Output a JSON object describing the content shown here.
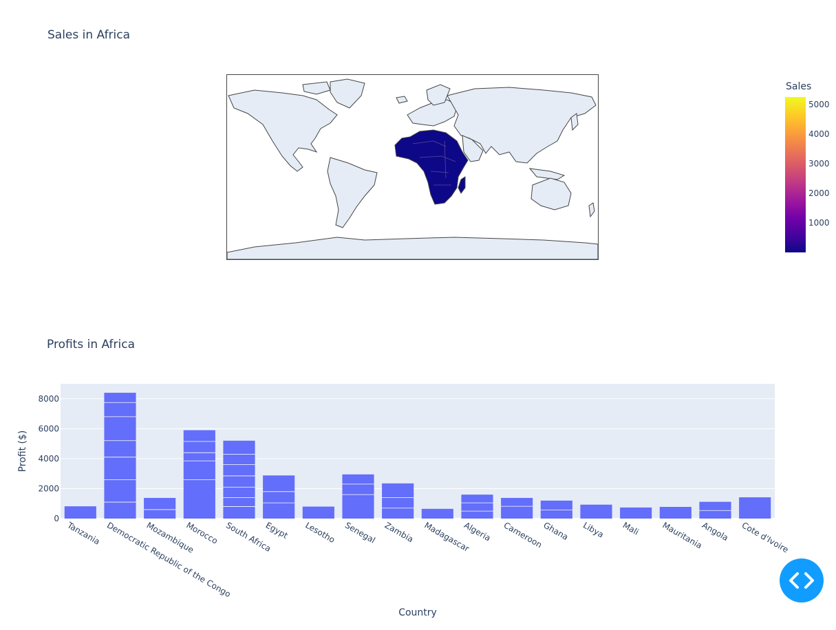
{
  "map": {
    "title": "Sales in Africa",
    "colorbar": {
      "title": "Sales",
      "ticks": [
        "5000",
        "4000",
        "3000",
        "2000",
        "1000"
      ],
      "colorscale": [
        "#0d0887",
        "#46039f",
        "#7201a8",
        "#9c179e",
        "#bd3786",
        "#d8576b",
        "#ed7953",
        "#fb9f3a",
        "#fdca26",
        "#f0f921"
      ]
    },
    "colors": {
      "land": "#e5ecf6",
      "coast": "#444444",
      "africa": "#0d0887"
    }
  },
  "chart_data": {
    "type": "bar",
    "title": "Profits in Africa",
    "xlabel": "Country",
    "ylabel": "Profit ($)",
    "ylim": [
      0,
      9000
    ],
    "yticks": [
      0,
      2000,
      4000,
      6000,
      8000
    ],
    "categories": [
      "Tanzania",
      "Democratic Republic of the Congo",
      "Mozambique",
      "Morocco",
      "South Africa",
      "Egypt",
      "Lesotho",
      "Senegal",
      "Zambia",
      "Madagascar",
      "Algeria",
      "Cameroon",
      "Ghana",
      "Libya",
      "Mali",
      "Mauritania",
      "Angola",
      "Cote d'Ivoire"
    ],
    "values": [
      820,
      8400,
      1380,
      5900,
      5200,
      2880,
      800,
      2950,
      2350,
      650,
      1600,
      1380,
      1200,
      930,
      740,
      780,
      1120,
      1420
    ],
    "segments": [
      [],
      [
        1100,
        2600,
        4100,
        5200,
        6800,
        7750
      ],
      [
        600
      ],
      [
        2600,
        3850,
        4400,
        5150
      ],
      [
        800,
        1400,
        2100,
        2850,
        3600,
        4300
      ],
      [
        1050,
        1800
      ],
      [],
      [
        1600,
        2300
      ],
      [
        700,
        1400
      ],
      [],
      [
        500,
        1050
      ],
      [
        820
      ],
      [
        580
      ],
      [],
      [],
      [],
      [
        540
      ],
      []
    ],
    "bar_color": "#636efa",
    "plot_bg": "#e5ecf6"
  },
  "modebar": {
    "icon": "code-icon",
    "color": "#119dff"
  }
}
